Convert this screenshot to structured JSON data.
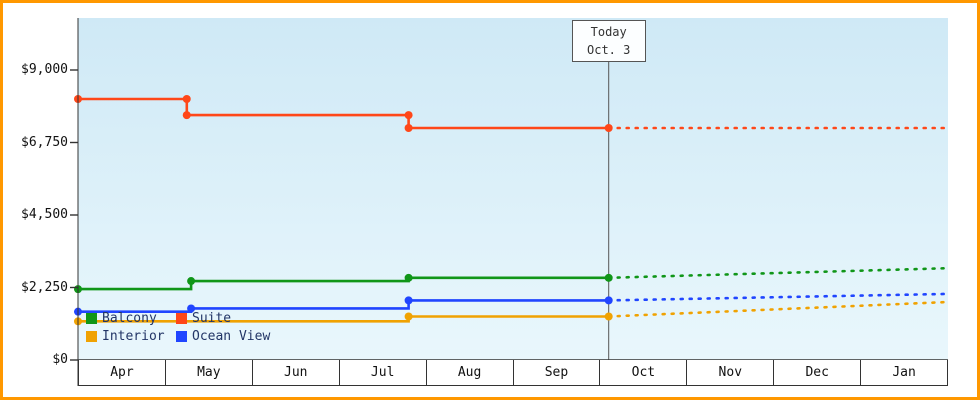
{
  "window": {
    "frame_color": "#ff9800",
    "background": "#ffffff"
  },
  "chart_data": {
    "type": "line",
    "title": "",
    "x_axis": {
      "unit": "month",
      "categories": [
        "Apr",
        "May",
        "Jun",
        "Jul",
        "Aug",
        "Sep",
        "Oct",
        "Nov",
        "Dec",
        "Jan"
      ]
    },
    "y_axis": {
      "min": 0,
      "max": 9000,
      "ticks": [
        {
          "value": 0,
          "label": "$0"
        },
        {
          "value": 2250,
          "label": "$2,250"
        },
        {
          "value": 4500,
          "label": "$4,500"
        },
        {
          "value": 6750,
          "label": "$6,750"
        },
        {
          "value": 9000,
          "label": "$9,000"
        }
      ]
    },
    "today": {
      "label_line1": "Today",
      "label_line2": "Oct. 3",
      "x_month": 6.1
    },
    "legend": [
      {
        "label": "Balcony",
        "color": "#109618"
      },
      {
        "label": "Suite",
        "color": "#ff4719"
      },
      {
        "label": "Interior",
        "color": "#f0a202"
      },
      {
        "label": "Ocean View",
        "color": "#2045ff"
      }
    ],
    "series": [
      {
        "name": "Interior",
        "color": "#f0a202",
        "solid": [
          [
            0,
            1200
          ],
          [
            3.8,
            1200
          ],
          [
            3.8,
            1350
          ],
          [
            6.1,
            1350
          ]
        ],
        "dashed": [
          [
            6.1,
            1350
          ],
          [
            10,
            1800
          ]
        ],
        "markers": [
          [
            0,
            1200
          ],
          [
            3.8,
            1350
          ],
          [
            6.1,
            1350
          ]
        ]
      },
      {
        "name": "Ocean View",
        "color": "#2045ff",
        "solid": [
          [
            0,
            1500
          ],
          [
            1.3,
            1500
          ],
          [
            1.3,
            1600
          ],
          [
            3.8,
            1600
          ],
          [
            3.8,
            1850
          ],
          [
            6.1,
            1850
          ]
        ],
        "dashed": [
          [
            6.1,
            1850
          ],
          [
            10,
            2050
          ]
        ],
        "markers": [
          [
            0,
            1500
          ],
          [
            1.3,
            1600
          ],
          [
            3.8,
            1850
          ],
          [
            6.1,
            1850
          ]
        ]
      },
      {
        "name": "Balcony",
        "color": "#109618",
        "solid": [
          [
            0,
            2200
          ],
          [
            1.3,
            2200
          ],
          [
            1.3,
            2450
          ],
          [
            3.8,
            2450
          ],
          [
            3.8,
            2550
          ],
          [
            6.1,
            2550
          ]
        ],
        "dashed": [
          [
            6.1,
            2550
          ],
          [
            10,
            2850
          ]
        ],
        "markers": [
          [
            0,
            2200
          ],
          [
            1.3,
            2450
          ],
          [
            3.8,
            2550
          ],
          [
            6.1,
            2550
          ]
        ]
      },
      {
        "name": "Suite",
        "color": "#ff4719",
        "solid": [
          [
            0,
            8100
          ],
          [
            1.25,
            8100
          ],
          [
            1.25,
            7600
          ],
          [
            3.8,
            7600
          ],
          [
            3.8,
            7200
          ],
          [
            6.1,
            7200
          ]
        ],
        "dashed": [
          [
            6.1,
            7200
          ],
          [
            10,
            7200
          ]
        ],
        "markers": [
          [
            0,
            8100
          ],
          [
            1.25,
            8100
          ],
          [
            1.25,
            7600
          ],
          [
            3.8,
            7600
          ],
          [
            3.8,
            7200
          ],
          [
            6.1,
            7200
          ]
        ]
      }
    ],
    "plot_background": {
      "top": "#cfe9f6",
      "bottom": "#e9f7fc"
    },
    "axis_color": "#333333"
  }
}
